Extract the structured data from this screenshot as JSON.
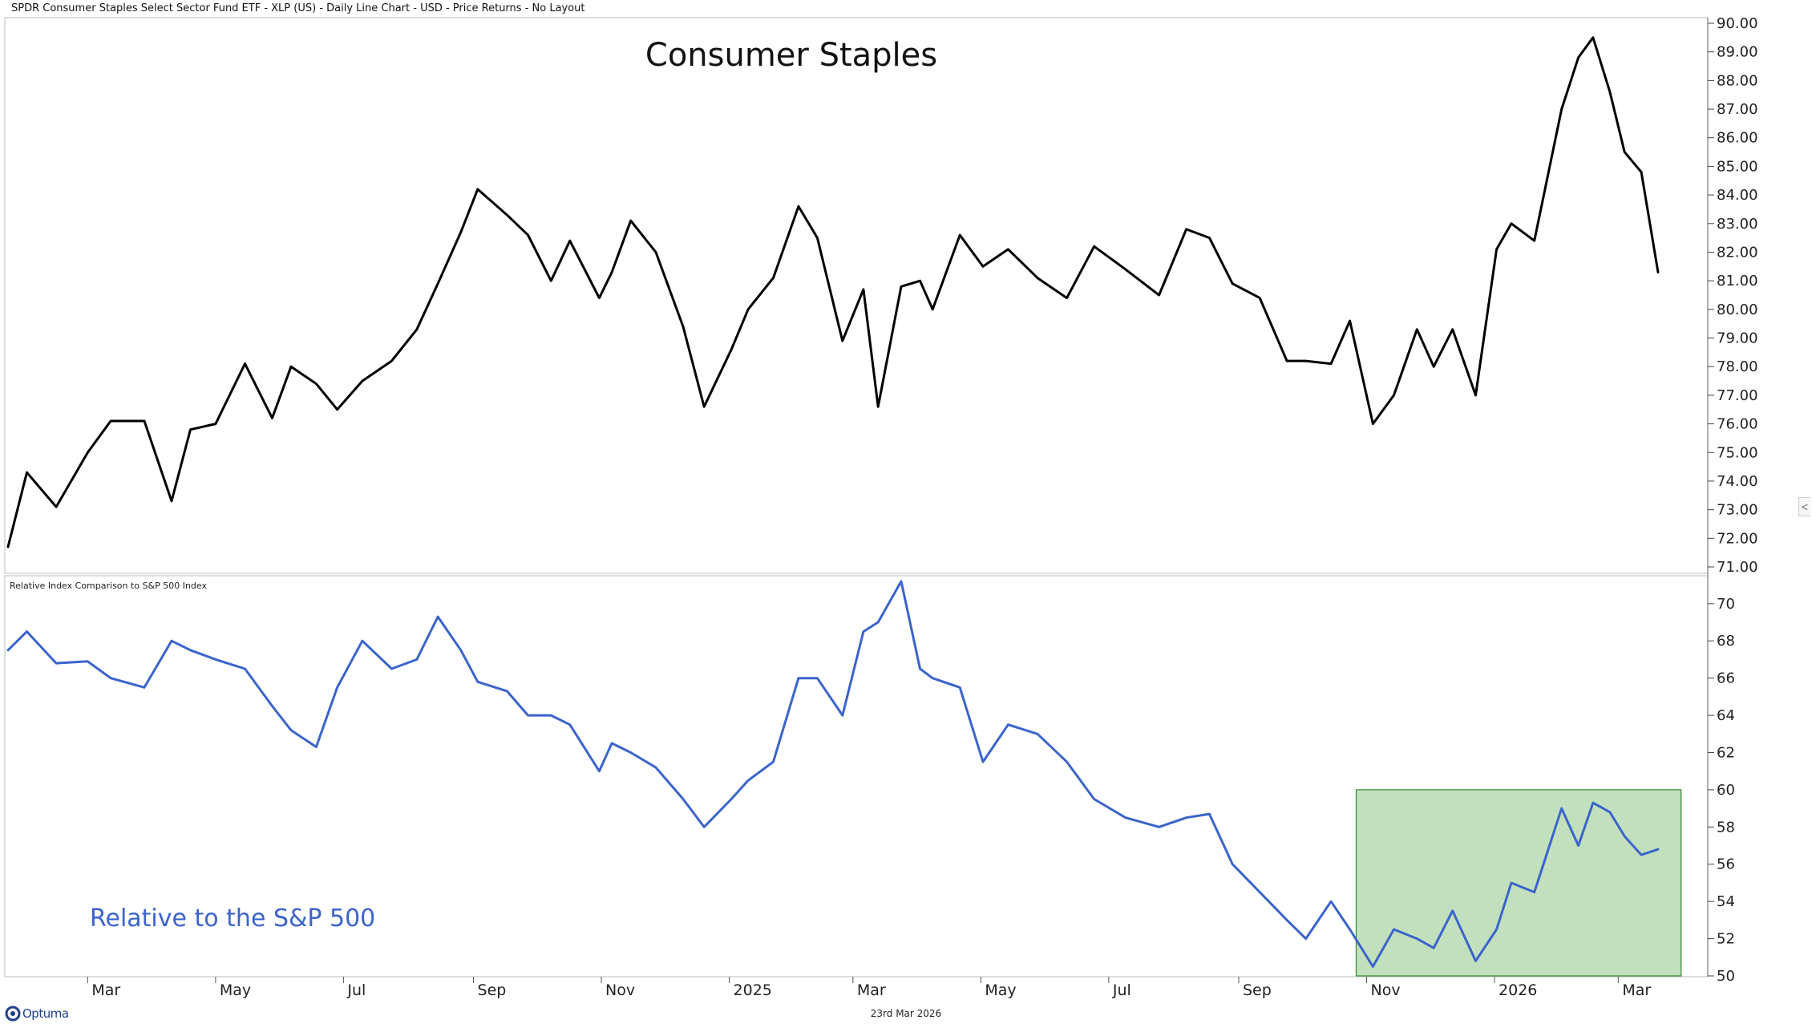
{
  "header": "SPDR Consumer Staples Select Sector Fund ETF - XLP (US) - Daily Line Chart - USD - Price Returns - No Layout",
  "footer_date": "23rd Mar 2026",
  "logo": "Optuma",
  "collapse_glyph": "<",
  "colors": {
    "price_line": "#000000",
    "relative_line": "#3b64cc",
    "highlight_fill": "#c2e0be",
    "highlight_stroke": "#2d8a2d",
    "relative_label": "#3b64cc"
  },
  "chart_data": [
    {
      "type": "line",
      "title": "Consumer Staples",
      "ylim": [
        71,
        90
      ],
      "yticks": [
        "90.00",
        "89.00",
        "88.00",
        "87.00",
        "86.00",
        "85.00",
        "84.00",
        "83.00",
        "82.00",
        "81.00",
        "80.00",
        "79.00",
        "78.00",
        "77.00",
        "76.00",
        "75.00",
        "74.00",
        "73.00",
        "72.00",
        "71.00"
      ],
      "series": [
        {
          "x": [
            "2024-01-23",
            "2024-02-01",
            "2024-02-15",
            "2024-03-01",
            "2024-03-12",
            "2024-03-28",
            "2024-04-10",
            "2024-04-19",
            "2024-05-01",
            "2024-05-15",
            "2024-05-28",
            "2024-06-06",
            "2024-06-18",
            "2024-06-28",
            "2024-07-10",
            "2024-07-24",
            "2024-08-05",
            "2024-08-15",
            "2024-08-26",
            "2024-09-03",
            "2024-09-17",
            "2024-09-27",
            "2024-10-08",
            "2024-10-17",
            "2024-10-31",
            "2024-11-06",
            "2024-11-15",
            "2024-11-27",
            "2024-12-10",
            "2024-12-20",
            "2025-01-02",
            "2025-01-10",
            "2025-01-22",
            "2025-02-03",
            "2025-02-12",
            "2025-02-24",
            "2025-03-06",
            "2025-03-13",
            "2025-03-24",
            "2025-04-02",
            "2025-04-08",
            "2025-04-21",
            "2025-05-02",
            "2025-05-14",
            "2025-05-28",
            "2025-06-11",
            "2025-06-24",
            "2025-07-09",
            "2025-07-25",
            "2025-08-07",
            "2025-08-18",
            "2025-08-29",
            "2025-09-11",
            "2025-09-24",
            "2025-10-03",
            "2025-10-15",
            "2025-10-24",
            "2025-11-04",
            "2025-11-14",
            "2025-11-25",
            "2025-12-03",
            "2025-12-12",
            "2025-12-23",
            "2026-01-02",
            "2026-01-09",
            "2026-01-20",
            "2026-02-02",
            "2026-02-10",
            "2026-02-17",
            "2026-02-25",
            "2026-03-04",
            "2026-03-12",
            "2026-03-20"
          ],
          "y": [
            71.7,
            74.3,
            73.1,
            75.0,
            76.1,
            76.1,
            73.3,
            75.8,
            76.0,
            78.1,
            76.2,
            78.0,
            77.4,
            76.5,
            77.5,
            78.2,
            79.3,
            80.9,
            82.7,
            84.2,
            83.3,
            82.6,
            81.0,
            82.4,
            80.4,
            81.3,
            83.1,
            82.0,
            79.4,
            76.6,
            78.6,
            80.0,
            81.1,
            83.6,
            82.5,
            78.9,
            80.7,
            76.6,
            80.8,
            81.0,
            80.0,
            82.6,
            81.5,
            82.1,
            81.1,
            80.4,
            82.2,
            81.4,
            80.5,
            82.8,
            82.5,
            80.9,
            80.4,
            78.2,
            78.2,
            78.1,
            79.6,
            76.0,
            77.0,
            79.3,
            78.0,
            79.3,
            77.0,
            82.1,
            83.0,
            82.4,
            87.0,
            88.8,
            89.5,
            87.6,
            85.5,
            84.8,
            81.3
          ]
        }
      ]
    },
    {
      "type": "line",
      "title": "Relative Index Comparison to S&P 500 Index",
      "annotation": "Relative to the S&P 500",
      "ylim": [
        50,
        71.5
      ],
      "yticks": [
        "70",
        "68",
        "66",
        "64",
        "62",
        "60",
        "58",
        "56",
        "54",
        "52",
        "50"
      ],
      "x_tick_labels": [
        "Mar",
        "May",
        "Jul",
        "Sep",
        "Nov",
        "2025",
        "Mar",
        "May",
        "Jul",
        "Sep",
        "Nov",
        "2026",
        "Mar"
      ],
      "highlight": {
        "x": [
          "2025-10-27",
          "2026-03-31"
        ],
        "y": [
          50,
          60
        ]
      },
      "series": [
        {
          "x": [
            "2024-01-23",
            "2024-02-01",
            "2024-02-15",
            "2024-03-01",
            "2024-03-12",
            "2024-03-28",
            "2024-04-10",
            "2024-04-19",
            "2024-05-01",
            "2024-05-15",
            "2024-05-28",
            "2024-06-06",
            "2024-06-18",
            "2024-06-28",
            "2024-07-10",
            "2024-07-24",
            "2024-08-05",
            "2024-08-15",
            "2024-08-26",
            "2024-09-03",
            "2024-09-17",
            "2024-09-27",
            "2024-10-08",
            "2024-10-17",
            "2024-10-31",
            "2024-11-06",
            "2024-11-15",
            "2024-11-27",
            "2024-12-10",
            "2024-12-20",
            "2025-01-02",
            "2025-01-10",
            "2025-01-22",
            "2025-02-03",
            "2025-02-12",
            "2025-02-24",
            "2025-03-06",
            "2025-03-13",
            "2025-03-24",
            "2025-04-02",
            "2025-04-08",
            "2025-04-21",
            "2025-05-02",
            "2025-05-14",
            "2025-05-28",
            "2025-06-11",
            "2025-06-24",
            "2025-07-09",
            "2025-07-25",
            "2025-08-07",
            "2025-08-18",
            "2025-08-29",
            "2025-09-11",
            "2025-09-24",
            "2025-10-03",
            "2025-10-15",
            "2025-10-24",
            "2025-11-04",
            "2025-11-14",
            "2025-11-25",
            "2025-12-03",
            "2025-12-12",
            "2025-12-23",
            "2026-01-02",
            "2026-01-09",
            "2026-01-20",
            "2026-02-02",
            "2026-02-10",
            "2026-02-17",
            "2026-02-25",
            "2026-03-04",
            "2026-03-12",
            "2026-03-20"
          ],
          "y": [
            67.5,
            68.5,
            66.8,
            66.9,
            66.0,
            65.5,
            68.0,
            67.5,
            67.0,
            66.5,
            64.5,
            63.2,
            62.3,
            65.5,
            68.0,
            66.5,
            67.0,
            69.3,
            67.5,
            65.8,
            65.3,
            64.0,
            64.0,
            63.5,
            61.0,
            62.5,
            62.0,
            61.2,
            59.5,
            58.0,
            59.5,
            60.5,
            61.5,
            66.0,
            66.0,
            64.0,
            68.5,
            69.0,
            71.2,
            66.5,
            66.0,
            65.5,
            61.5,
            63.5,
            63.0,
            61.5,
            59.5,
            58.5,
            58.0,
            58.5,
            58.7,
            56.0,
            54.5,
            53.0,
            52.0,
            54.0,
            52.5,
            50.5,
            52.5,
            52.0,
            51.5,
            53.5,
            50.8,
            52.5,
            55.0,
            54.5,
            59.0,
            57.0,
            59.3,
            58.8,
            57.5,
            56.5,
            56.8
          ]
        }
      ]
    }
  ]
}
